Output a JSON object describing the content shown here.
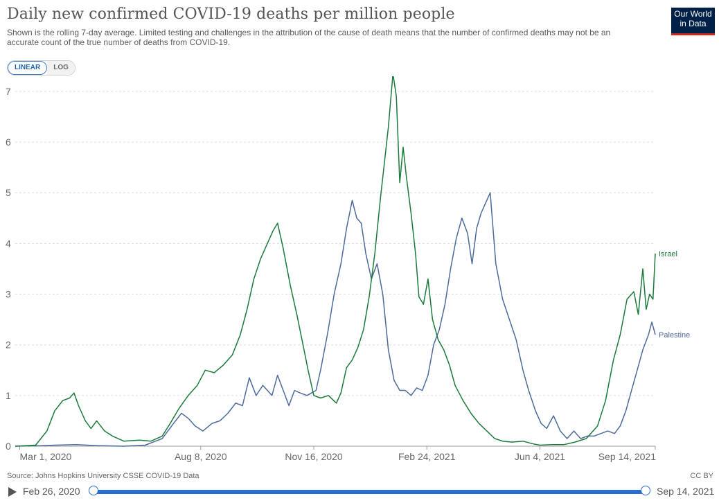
{
  "header": {
    "title": "Daily new confirmed COVID-19 deaths per million people",
    "subtitle": "Shown is the rolling 7-day average. Limited testing and challenges in the attribution of the cause of death means that the number of confirmed deaths may not be an accurate count of the true number of deaths from COVID-19.",
    "logo_line1": "Our World",
    "logo_line2": "in Data"
  },
  "controls": {
    "linear_label": "LINEAR",
    "log_label": "LOG",
    "active_scale": "linear"
  },
  "footer": {
    "source": "Source: Johns Hopkins University CSSE COVID-19 Data",
    "license": "CC BY"
  },
  "timeline": {
    "start_label": "Feb 26, 2020",
    "end_label": "Sep 14, 2021"
  },
  "colors": {
    "israel": "#1a7a3a",
    "palestine": "#4c6a9c",
    "grid": "#dddddd",
    "axis": "#999999"
  },
  "chart_data": {
    "type": "line",
    "title": "Daily new confirmed COVID-19 deaths per million people",
    "x_axis": {
      "type": "date",
      "range": [
        "2020-02-26",
        "2021-09-14"
      ],
      "ticks": [
        {
          "date": "2020-03-01",
          "label": "Mar 1, 2020"
        },
        {
          "date": "2020-08-08",
          "label": "Aug 8, 2020"
        },
        {
          "date": "2020-11-16",
          "label": "Nov 16, 2020"
        },
        {
          "date": "2021-02-24",
          "label": "Feb 24, 2021"
        },
        {
          "date": "2021-06-04",
          "label": "Jun 4, 2021"
        },
        {
          "date": "2021-09-14",
          "label": "Sep 14, 2021"
        }
      ]
    },
    "y_axis": {
      "ylim": [
        0,
        7.3
      ],
      "ticks": [
        0,
        1,
        2,
        3,
        4,
        5,
        6,
        7
      ]
    },
    "grid": "horizontal-dashed",
    "legend": "inline-right",
    "series": [
      {
        "name": "Israel",
        "points": [
          [
            "2020-02-26",
            0
          ],
          [
            "2020-03-15",
            0.02
          ],
          [
            "2020-03-25",
            0.3
          ],
          [
            "2020-04-01",
            0.7
          ],
          [
            "2020-04-08",
            0.9
          ],
          [
            "2020-04-14",
            0.95
          ],
          [
            "2020-04-18",
            1.05
          ],
          [
            "2020-04-22",
            0.8
          ],
          [
            "2020-04-28",
            0.5
          ],
          [
            "2020-05-03",
            0.35
          ],
          [
            "2020-05-08",
            0.5
          ],
          [
            "2020-05-15",
            0.3
          ],
          [
            "2020-05-22",
            0.2
          ],
          [
            "2020-06-01",
            0.1
          ],
          [
            "2020-06-15",
            0.12
          ],
          [
            "2020-06-25",
            0.1
          ],
          [
            "2020-07-05",
            0.2
          ],
          [
            "2020-07-12",
            0.45
          ],
          [
            "2020-07-20",
            0.75
          ],
          [
            "2020-07-28",
            1.0
          ],
          [
            "2020-08-05",
            1.2
          ],
          [
            "2020-08-12",
            1.5
          ],
          [
            "2020-08-20",
            1.45
          ],
          [
            "2020-08-28",
            1.6
          ],
          [
            "2020-09-05",
            1.8
          ],
          [
            "2020-09-12",
            2.2
          ],
          [
            "2020-09-18",
            2.7
          ],
          [
            "2020-09-24",
            3.3
          ],
          [
            "2020-09-30",
            3.7
          ],
          [
            "2020-10-06",
            4.0
          ],
          [
            "2020-10-11",
            4.25
          ],
          [
            "2020-10-15",
            4.4
          ],
          [
            "2020-10-20",
            3.9
          ],
          [
            "2020-10-26",
            3.2
          ],
          [
            "2020-11-01",
            2.6
          ],
          [
            "2020-11-06",
            2.05
          ],
          [
            "2020-11-11",
            1.5
          ],
          [
            "2020-11-16",
            1.0
          ],
          [
            "2020-11-22",
            0.95
          ],
          [
            "2020-11-29",
            1.0
          ],
          [
            "2020-12-06",
            0.85
          ],
          [
            "2020-12-10",
            1.05
          ],
          [
            "2020-12-15",
            1.55
          ],
          [
            "2020-12-20",
            1.7
          ],
          [
            "2020-12-25",
            1.95
          ],
          [
            "2020-12-30",
            2.3
          ],
          [
            "2021-01-04",
            2.95
          ],
          [
            "2021-01-09",
            3.8
          ],
          [
            "2021-01-14",
            4.9
          ],
          [
            "2021-01-17",
            5.5
          ],
          [
            "2021-01-21",
            6.3
          ],
          [
            "2021-01-25",
            7.35
          ],
          [
            "2021-01-28",
            6.9
          ],
          [
            "2021-01-31",
            5.2
          ],
          [
            "2021-02-03",
            5.9
          ],
          [
            "2021-02-06",
            5.3
          ],
          [
            "2021-02-10",
            4.6
          ],
          [
            "2021-02-14",
            3.8
          ],
          [
            "2021-02-17",
            2.95
          ],
          [
            "2021-02-21",
            2.8
          ],
          [
            "2021-02-25",
            3.3
          ],
          [
            "2021-03-01",
            2.5
          ],
          [
            "2021-03-06",
            2.1
          ],
          [
            "2021-03-11",
            1.9
          ],
          [
            "2021-03-16",
            1.6
          ],
          [
            "2021-03-21",
            1.2
          ],
          [
            "2021-03-28",
            0.9
          ],
          [
            "2021-04-04",
            0.65
          ],
          [
            "2021-04-11",
            0.45
          ],
          [
            "2021-04-18",
            0.3
          ],
          [
            "2021-04-25",
            0.15
          ],
          [
            "2021-05-02",
            0.1
          ],
          [
            "2021-05-10",
            0.08
          ],
          [
            "2021-05-20",
            0.1
          ],
          [
            "2021-05-28",
            0.05
          ],
          [
            "2021-06-04",
            0.02
          ],
          [
            "2021-06-15",
            0.03
          ],
          [
            "2021-06-25",
            0.03
          ],
          [
            "2021-07-05",
            0.08
          ],
          [
            "2021-07-15",
            0.15
          ],
          [
            "2021-07-25",
            0.4
          ],
          [
            "2021-08-01",
            0.9
          ],
          [
            "2021-08-08",
            1.7
          ],
          [
            "2021-08-14",
            2.2
          ],
          [
            "2021-08-20",
            2.9
          ],
          [
            "2021-08-26",
            3.05
          ],
          [
            "2021-08-30",
            2.6
          ],
          [
            "2021-09-03",
            3.5
          ],
          [
            "2021-09-06",
            2.7
          ],
          [
            "2021-09-09",
            3.0
          ],
          [
            "2021-09-12",
            2.9
          ],
          [
            "2021-09-14",
            3.8
          ]
        ]
      },
      {
        "name": "Palestine",
        "points": [
          [
            "2020-02-26",
            0
          ],
          [
            "2020-03-20",
            0.01
          ],
          [
            "2020-04-01",
            0.02
          ],
          [
            "2020-04-20",
            0.03
          ],
          [
            "2020-05-10",
            0.01
          ],
          [
            "2020-06-01",
            0
          ],
          [
            "2020-06-20",
            0.02
          ],
          [
            "2020-07-05",
            0.15
          ],
          [
            "2020-07-15",
            0.45
          ],
          [
            "2020-07-22",
            0.65
          ],
          [
            "2020-07-28",
            0.55
          ],
          [
            "2020-08-03",
            0.4
          ],
          [
            "2020-08-10",
            0.3
          ],
          [
            "2020-08-18",
            0.45
          ],
          [
            "2020-08-25",
            0.5
          ],
          [
            "2020-09-01",
            0.65
          ],
          [
            "2020-09-08",
            0.85
          ],
          [
            "2020-09-14",
            0.8
          ],
          [
            "2020-09-20",
            1.35
          ],
          [
            "2020-09-26",
            1.0
          ],
          [
            "2020-10-02",
            1.2
          ],
          [
            "2020-10-10",
            1.0
          ],
          [
            "2020-10-15",
            1.4
          ],
          [
            "2020-10-20",
            1.1
          ],
          [
            "2020-10-25",
            0.8
          ],
          [
            "2020-10-30",
            1.1
          ],
          [
            "2020-11-04",
            1.05
          ],
          [
            "2020-11-10",
            1.0
          ],
          [
            "2020-11-14",
            1.05
          ],
          [
            "2020-11-18",
            1.1
          ],
          [
            "2020-11-22",
            1.5
          ],
          [
            "2020-11-28",
            2.2
          ],
          [
            "2020-12-04",
            3.0
          ],
          [
            "2020-12-10",
            3.6
          ],
          [
            "2020-12-15",
            4.3
          ],
          [
            "2020-12-20",
            4.85
          ],
          [
            "2020-12-24",
            4.5
          ],
          [
            "2020-12-28",
            4.4
          ],
          [
            "2021-01-01",
            3.8
          ],
          [
            "2021-01-06",
            3.3
          ],
          [
            "2021-01-11",
            3.6
          ],
          [
            "2021-01-16",
            3.0
          ],
          [
            "2021-01-21",
            1.9
          ],
          [
            "2021-01-26",
            1.3
          ],
          [
            "2021-01-31",
            1.1
          ],
          [
            "2021-02-05",
            1.1
          ],
          [
            "2021-02-10",
            1.0
          ],
          [
            "2021-02-15",
            1.15
          ],
          [
            "2021-02-20",
            1.1
          ],
          [
            "2021-02-25",
            1.4
          ],
          [
            "2021-03-02",
            2.0
          ],
          [
            "2021-03-07",
            2.3
          ],
          [
            "2021-03-12",
            2.8
          ],
          [
            "2021-03-17",
            3.5
          ],
          [
            "2021-03-22",
            4.1
          ],
          [
            "2021-03-27",
            4.5
          ],
          [
            "2021-04-01",
            4.2
          ],
          [
            "2021-04-05",
            3.6
          ],
          [
            "2021-04-09",
            4.3
          ],
          [
            "2021-04-13",
            4.6
          ],
          [
            "2021-04-17",
            4.8
          ],
          [
            "2021-04-21",
            5.0
          ],
          [
            "2021-04-26",
            3.6
          ],
          [
            "2021-05-02",
            2.9
          ],
          [
            "2021-05-08",
            2.5
          ],
          [
            "2021-05-14",
            2.1
          ],
          [
            "2021-05-20",
            1.5
          ],
          [
            "2021-05-25",
            1.1
          ],
          [
            "2021-05-31",
            0.7
          ],
          [
            "2021-06-05",
            0.45
          ],
          [
            "2021-06-10",
            0.35
          ],
          [
            "2021-06-16",
            0.6
          ],
          [
            "2021-06-22",
            0.3
          ],
          [
            "2021-06-28",
            0.15
          ],
          [
            "2021-07-04",
            0.3
          ],
          [
            "2021-07-10",
            0.15
          ],
          [
            "2021-07-16",
            0.2
          ],
          [
            "2021-07-22",
            0.2
          ],
          [
            "2021-07-28",
            0.25
          ],
          [
            "2021-08-03",
            0.3
          ],
          [
            "2021-08-09",
            0.25
          ],
          [
            "2021-08-14",
            0.4
          ],
          [
            "2021-08-19",
            0.7
          ],
          [
            "2021-08-24",
            1.1
          ],
          [
            "2021-08-29",
            1.5
          ],
          [
            "2021-09-03",
            1.9
          ],
          [
            "2021-09-08",
            2.2
          ],
          [
            "2021-09-11",
            2.45
          ],
          [
            "2021-09-14",
            2.2
          ]
        ]
      }
    ]
  }
}
